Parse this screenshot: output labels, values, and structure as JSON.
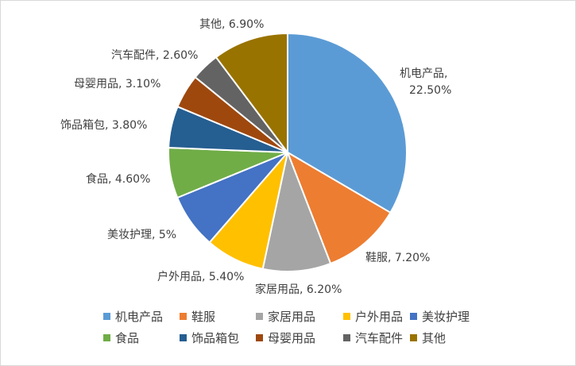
{
  "chart_data": {
    "type": "pie",
    "title": "",
    "slices": [
      {
        "name": "机电产品",
        "value": 22.5,
        "label": "22.50%",
        "color": "#5b9bd5"
      },
      {
        "name": "鞋服",
        "value": 7.2,
        "label": "7.20%",
        "color": "#ed7d31"
      },
      {
        "name": "家居用品",
        "value": 6.2,
        "label": "6.20%",
        "color": "#a5a5a5"
      },
      {
        "name": "户外用品",
        "value": 5.4,
        "label": "5.40%",
        "color": "#ffc000"
      },
      {
        "name": "美妆护理",
        "value": 5,
        "label": "5%",
        "color": "#4472c4"
      },
      {
        "name": "食品",
        "value": 4.6,
        "label": "4.60%",
        "color": "#70ad47"
      },
      {
        "name": "饰品箱包",
        "value": 3.8,
        "label": "3.80%",
        "color": "#255e91"
      },
      {
        "name": "母婴用品",
        "value": 3.1,
        "label": "3.10%",
        "color": "#9e480e"
      },
      {
        "name": "汽车配件",
        "value": 2.6,
        "label": "2.60%",
        "color": "#636363"
      },
      {
        "name": "其他",
        "value": 6.9,
        "label": "6.90%",
        "color": "#997300"
      }
    ],
    "legend": {
      "position": "bottom"
    }
  }
}
